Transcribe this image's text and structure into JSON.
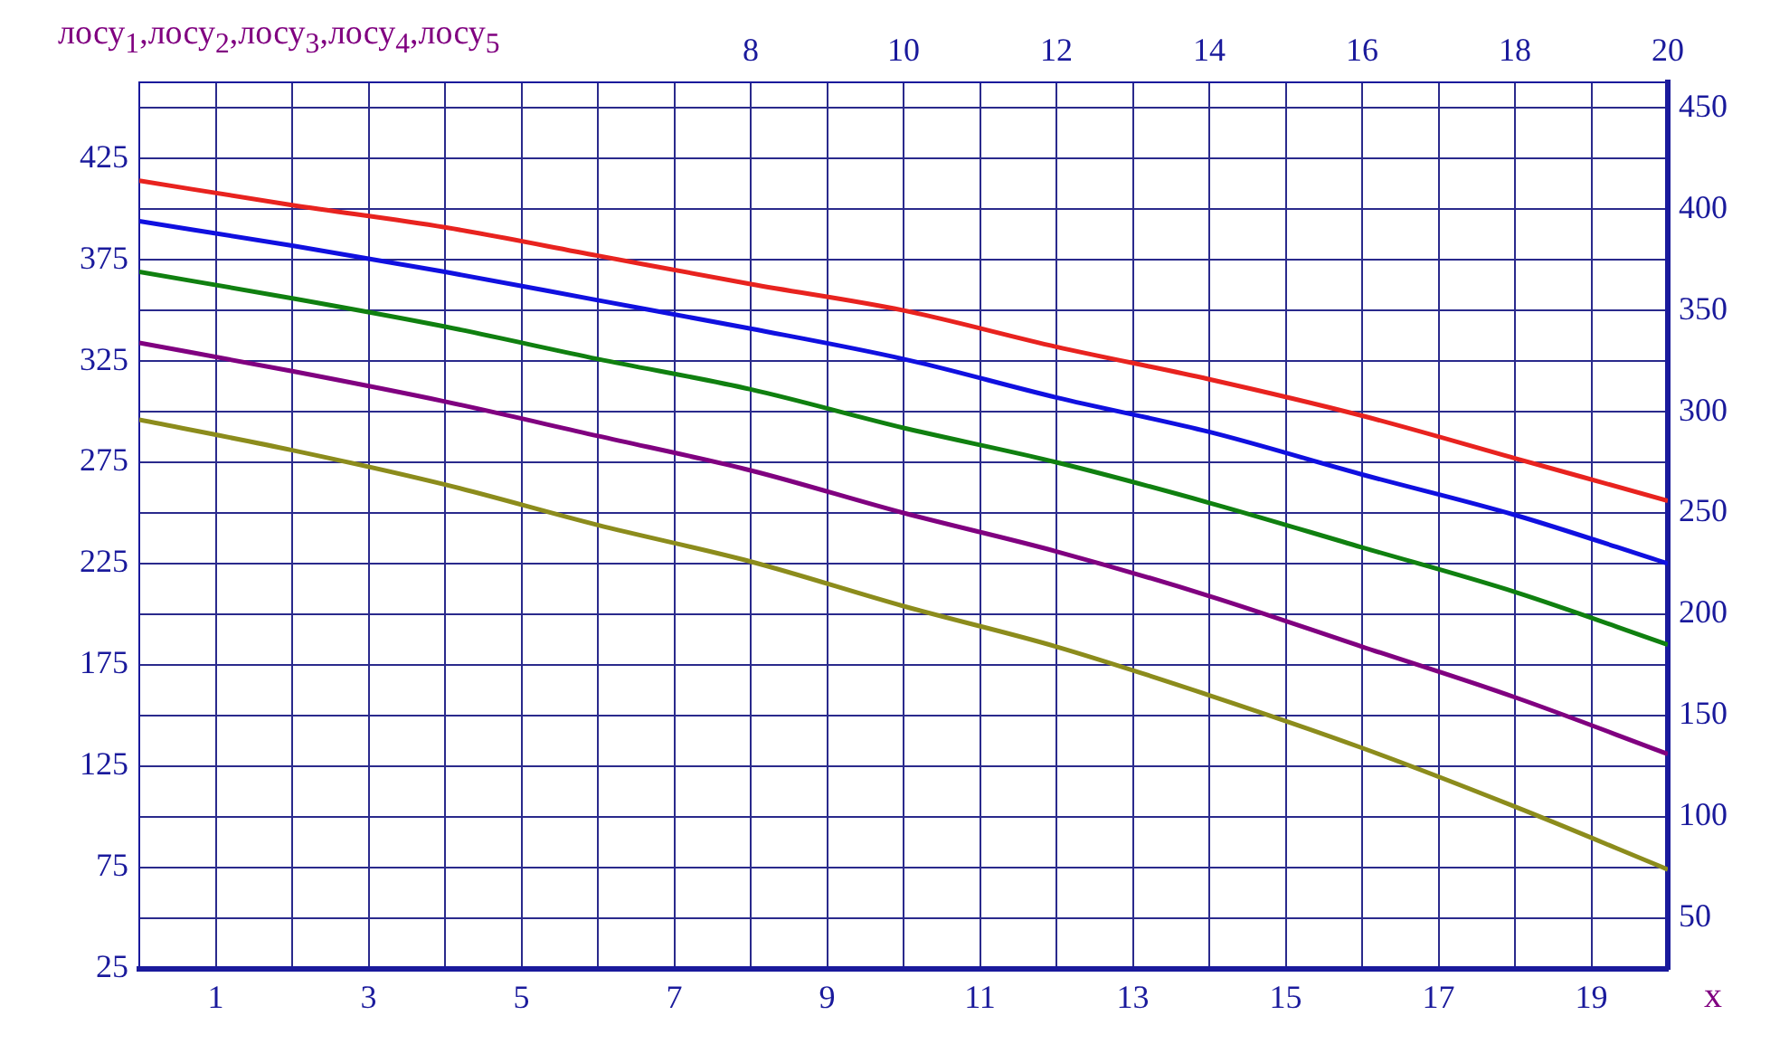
{
  "chart_data": {
    "type": "line",
    "ylabel": "лосу$_{1}$,лосу$_{2}$,лосу$_{3}$,лосу$_{4}$,лосу$_{5}$",
    "xlabel": "x",
    "xlim": [
      0,
      20
    ],
    "xticks": [
      1,
      3,
      5,
      7,
      9,
      11,
      13,
      15,
      17,
      19
    ],
    "x2lim": [
      0,
      20
    ],
    "x2ticks": [
      {
        "value": 2,
        "label": null
      },
      {
        "value": 4,
        "label": null
      },
      {
        "value": 6,
        "label": null
      },
      8,
      10,
      12,
      14,
      16,
      18,
      20
    ],
    "ylim": [
      25,
      462.5
    ],
    "yticks": [
      25,
      75,
      125,
      175,
      225,
      275,
      325,
      375,
      425
    ],
    "y2lim": [
      25,
      462.5
    ],
    "y2ticks": [
      50,
      100,
      150,
      200,
      250,
      300,
      350,
      400,
      450
    ],
    "grid": true,
    "legend": false,
    "marker": "none",
    "line_style": "solid",
    "series": [
      {
        "color": "#e8231f",
        "x": [
          0,
          2,
          4,
          6,
          8,
          10,
          12,
          14,
          16,
          18,
          20
        ],
        "values": [
          414,
          402,
          391,
          377,
          363,
          350,
          332,
          316,
          298,
          277,
          256
        ]
      },
      {
        "color": "#1010e0",
        "x": [
          0,
          2,
          4,
          6,
          8,
          10,
          12,
          14,
          16,
          18,
          20
        ],
        "values": [
          394,
          382,
          369,
          355,
          341,
          326,
          307,
          290,
          269,
          249,
          225
        ]
      },
      {
        "color": "#108010",
        "x": [
          0,
          2,
          4,
          6,
          8,
          10,
          12,
          14,
          16,
          18,
          20
        ],
        "values": [
          369,
          356,
          342,
          326,
          311,
          292,
          275,
          255,
          233,
          211,
          185
        ]
      },
      {
        "color": "#800080",
        "x": [
          0,
          2,
          4,
          6,
          8,
          10,
          12,
          14,
          16,
          18,
          20
        ],
        "values": [
          334,
          320,
          305,
          288,
          271,
          250,
          231,
          209,
          184,
          159,
          131
        ]
      },
      {
        "color": "#8c8c1c",
        "x": [
          0,
          2,
          4,
          6,
          8,
          10,
          12,
          14,
          16,
          18,
          20
        ],
        "values": [
          296,
          281,
          264,
          244,
          226,
          204,
          184,
          160,
          134,
          105,
          74
        ]
      }
    ]
  }
}
